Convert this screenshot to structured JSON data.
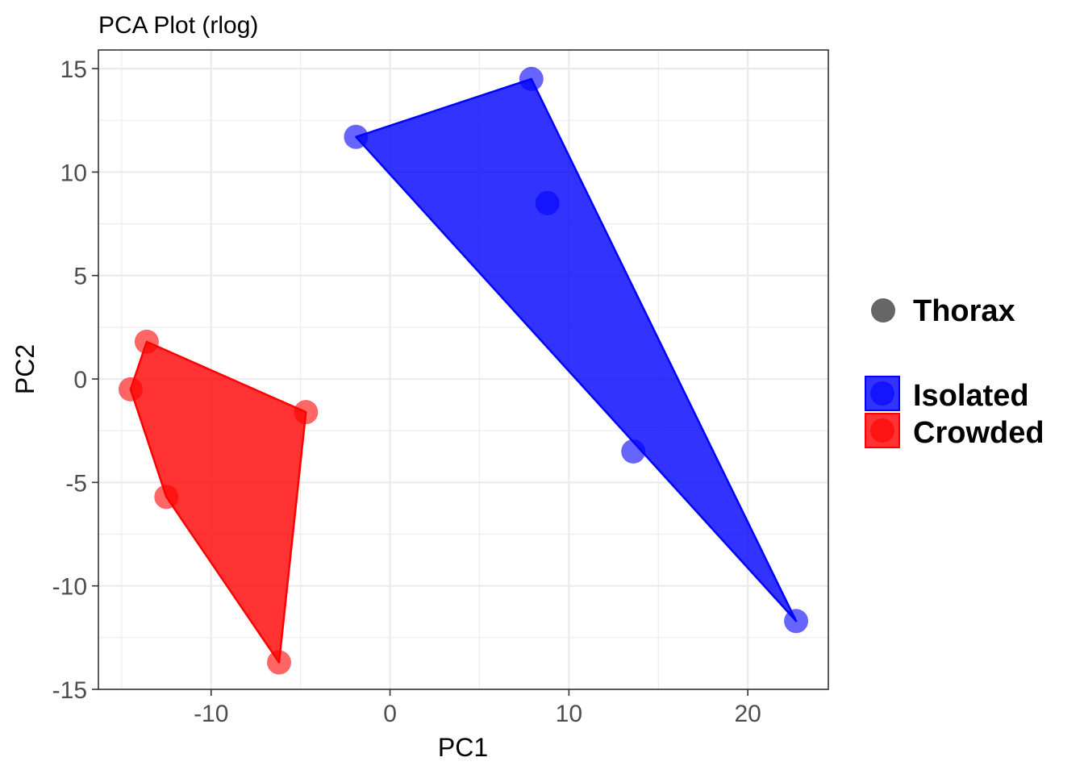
{
  "chart_data": {
    "type": "scatter",
    "title": "PCA Plot (rlog)",
    "xlabel": "PC1",
    "ylabel": "PC2",
    "xlim": [
      -16.3,
      24.5
    ],
    "ylim": [
      -15,
      15.9
    ],
    "x_ticks": [
      -10,
      0,
      10,
      20
    ],
    "y_ticks": [
      -15,
      -10,
      -5,
      0,
      5,
      10,
      15
    ],
    "x_tick_labels": [
      "-10",
      "0",
      "10",
      "20"
    ],
    "y_tick_labels": [
      "-15",
      "-10",
      "-5",
      "0",
      "5",
      "10",
      "15"
    ],
    "grid": true,
    "shape_legend": {
      "label": "Thorax",
      "color": "#666666"
    },
    "series": [
      {
        "name": "Isolated",
        "color": "#0000ff",
        "points": [
          {
            "x": -1.9,
            "y": 11.7
          },
          {
            "x": 7.9,
            "y": 14.5
          },
          {
            "x": 8.8,
            "y": 8.5
          },
          {
            "x": 13.6,
            "y": -3.5
          },
          {
            "x": 22.7,
            "y": -11.7
          }
        ],
        "hull": [
          {
            "x": -1.9,
            "y": 11.7
          },
          {
            "x": 7.9,
            "y": 14.5
          },
          {
            "x": 22.7,
            "y": -11.7
          }
        ]
      },
      {
        "name": "Crowded",
        "color": "#ff0000",
        "points": [
          {
            "x": -13.6,
            "y": 1.8
          },
          {
            "x": -14.5,
            "y": -0.5
          },
          {
            "x": -4.7,
            "y": -1.6
          },
          {
            "x": -12.5,
            "y": -5.7
          },
          {
            "x": -6.2,
            "y": -13.7
          }
        ],
        "hull": [
          {
            "x": -13.6,
            "y": 1.8
          },
          {
            "x": -4.7,
            "y": -1.6
          },
          {
            "x": -6.2,
            "y": -13.7
          },
          {
            "x": -12.5,
            "y": -5.7
          },
          {
            "x": -14.5,
            "y": -0.5
          }
        ]
      }
    ]
  }
}
